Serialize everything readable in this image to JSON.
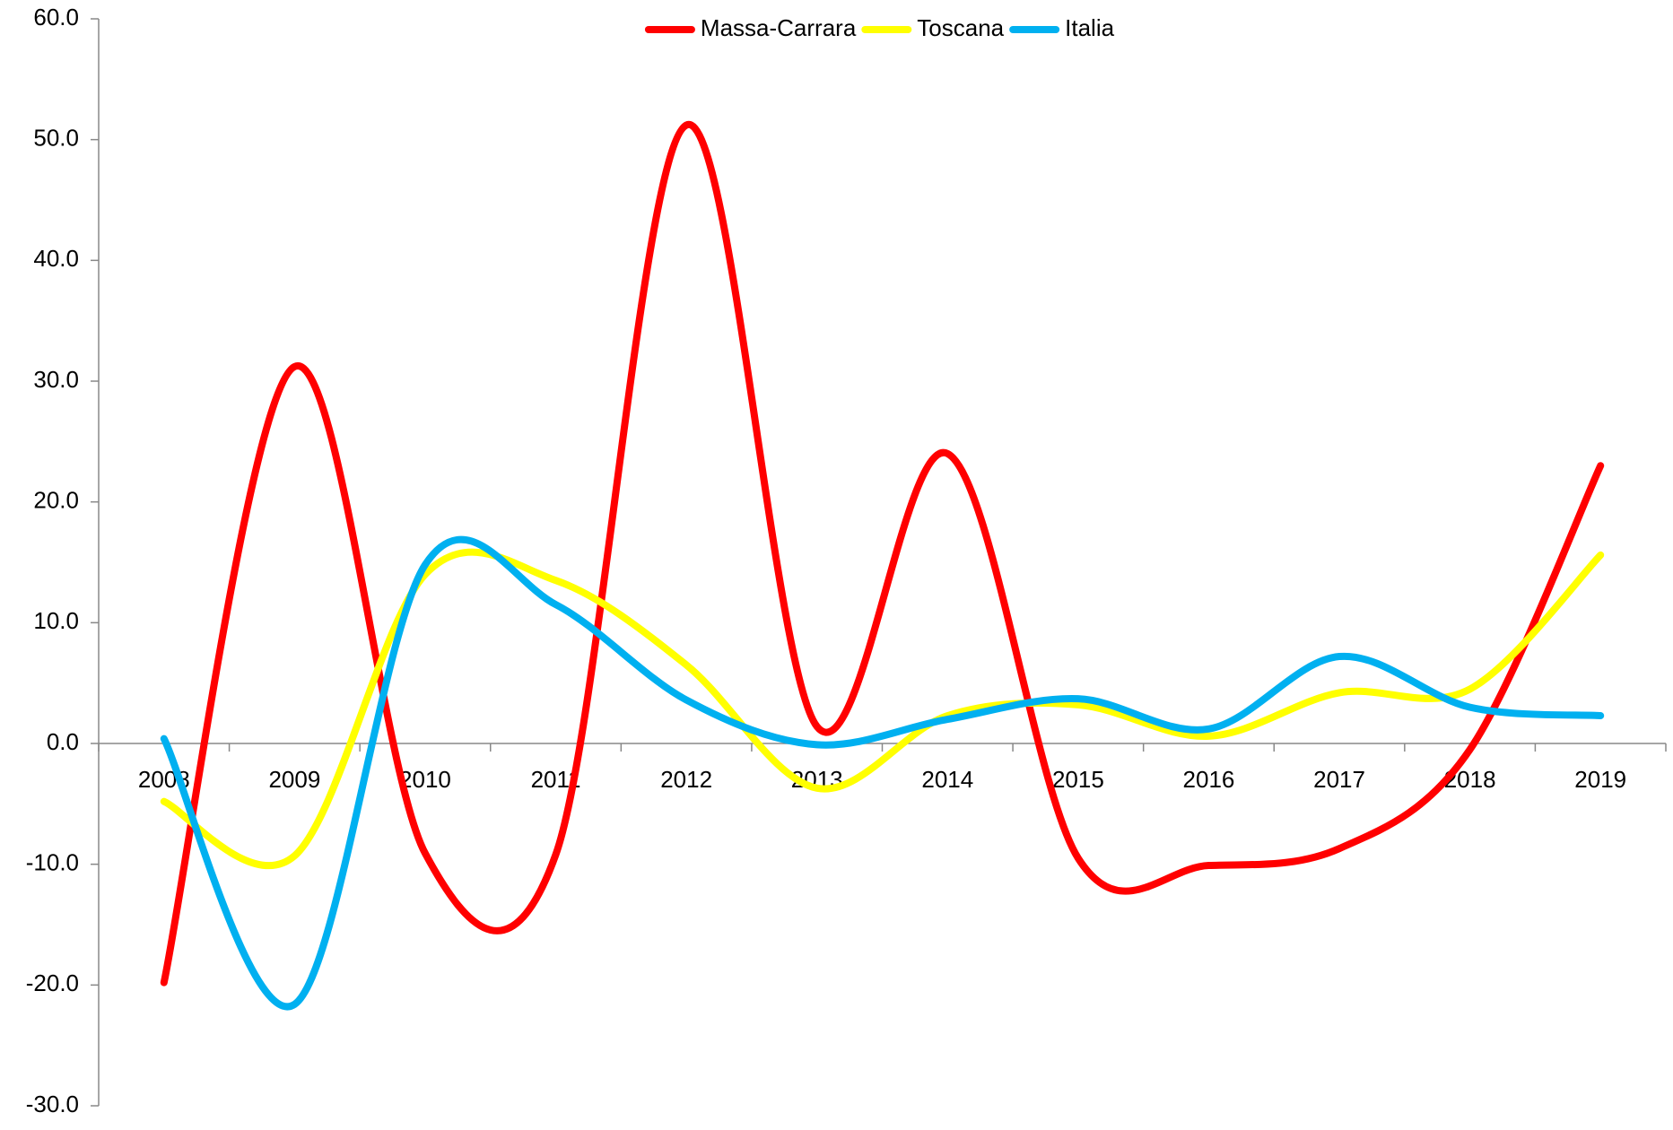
{
  "chart_data": {
    "type": "line",
    "categories": [
      "2008",
      "2009",
      "2010",
      "2011",
      "2012",
      "2013",
      "2014",
      "2015",
      "2016",
      "2017",
      "2018",
      "2019"
    ],
    "series": [
      {
        "name": "Massa-Carrara",
        "color": "#ff0000",
        "values": [
          -19.8,
          31.2,
          -9.1,
          -9.2,
          51.2,
          1.4,
          24.0,
          -9.5,
          -10.1,
          -8.7,
          -0.5,
          23.0
        ]
      },
      {
        "name": "Toscana",
        "color": "#ffff00",
        "values": [
          -4.8,
          -9.3,
          14.0,
          13.5,
          6.5,
          -3.7,
          2.3,
          3.2,
          0.6,
          4.2,
          4.5,
          15.6
        ]
      },
      {
        "name": "Italia",
        "color": "#00b0f0",
        "values": [
          0.4,
          -21.6,
          14.8,
          11.5,
          3.6,
          -0.1,
          2.0,
          3.7,
          1.2,
          7.2,
          3.0,
          2.3
        ]
      }
    ],
    "ylim": [
      -30,
      60
    ],
    "yticks": [
      {
        "value": -30,
        "label": "-30.0"
      },
      {
        "value": -20,
        "label": "-20.0"
      },
      {
        "value": -10,
        "label": "-10.0"
      },
      {
        "value": 0,
        "label": "0.0"
      },
      {
        "value": 10,
        "label": "10.0"
      },
      {
        "value": 20,
        "label": "20.0"
      },
      {
        "value": 30,
        "label": "30.0"
      },
      {
        "value": 40,
        "label": "40.0"
      },
      {
        "value": 50,
        "label": "50.0"
      },
      {
        "value": 60,
        "label": "60.0"
      }
    ],
    "smooth": true,
    "legend": "top"
  }
}
